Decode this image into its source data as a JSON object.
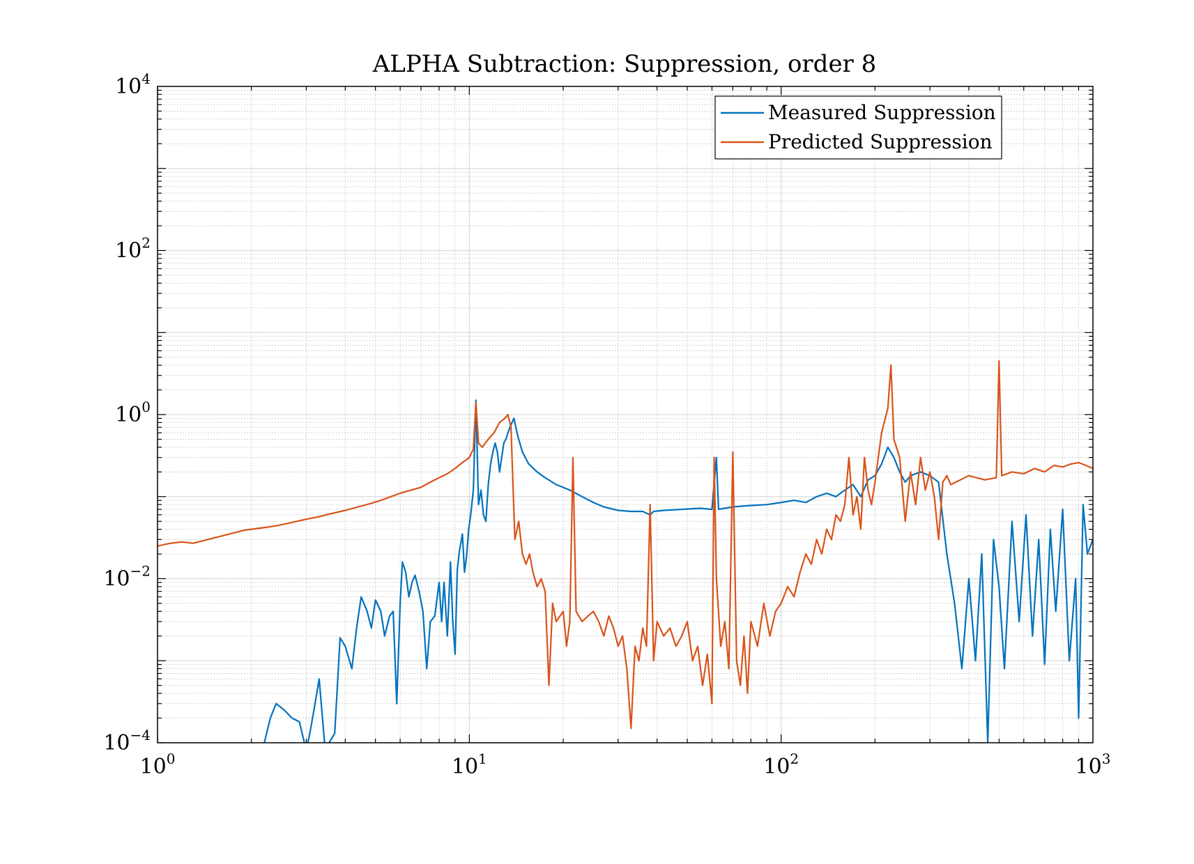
{
  "chart_data": {
    "type": "line",
    "title": "ALPHA Subtraction: Suppression, order 8",
    "xlabel": "",
    "ylabel": "",
    "xscale": "log",
    "yscale": "log",
    "xlim": [
      1,
      1000
    ],
    "ylim": [
      0.0001,
      10000
    ],
    "x_ticks": [
      {
        "value": 1,
        "base": "10",
        "exp": "0"
      },
      {
        "value": 10,
        "base": "10",
        "exp": "1"
      },
      {
        "value": 100,
        "base": "10",
        "exp": "2"
      },
      {
        "value": 1000,
        "base": "10",
        "exp": "3"
      }
    ],
    "y_ticks": [
      {
        "value": 0.0001,
        "base": "10",
        "exp": "−4"
      },
      {
        "value": 0.01,
        "base": "10",
        "exp": "−2"
      },
      {
        "value": 1,
        "base": "10",
        "exp": "0"
      },
      {
        "value": 100,
        "base": "10",
        "exp": "2"
      },
      {
        "value": 10000,
        "base": "10",
        "exp": "4"
      }
    ],
    "grid": true,
    "minor_grid": true,
    "legend_position": "top-right",
    "series": [
      {
        "name": "Measured Suppression",
        "color": "#0072BD",
        "points": [
          [
            2.2,
            0.0001
          ],
          [
            2.3,
            0.0002
          ],
          [
            2.4,
            0.0003
          ],
          [
            2.55,
            0.00025
          ],
          [
            2.7,
            0.0002
          ],
          [
            2.85,
            0.00018
          ],
          [
            3.0,
            8e-05
          ],
          [
            3.1,
            0.00015
          ],
          [
            3.2,
            0.0003
          ],
          [
            3.3,
            0.0006
          ],
          [
            3.45,
            8e-05
          ],
          [
            3.55,
            0.0001
          ],
          [
            3.7,
            0.00013
          ],
          [
            3.85,
            0.0019
          ],
          [
            4.0,
            0.0015
          ],
          [
            4.2,
            0.0008
          ],
          [
            4.35,
            0.0025
          ],
          [
            4.5,
            0.006
          ],
          [
            4.7,
            0.004
          ],
          [
            4.85,
            0.0025
          ],
          [
            5.0,
            0.0055
          ],
          [
            5.2,
            0.004
          ],
          [
            5.35,
            0.002
          ],
          [
            5.55,
            0.0035
          ],
          [
            5.7,
            0.004
          ],
          [
            5.85,
            0.0003
          ],
          [
            6.0,
            0.005
          ],
          [
            6.1,
            0.016
          ],
          [
            6.25,
            0.012
          ],
          [
            6.4,
            0.006
          ],
          [
            6.55,
            0.009
          ],
          [
            6.7,
            0.011
          ],
          [
            6.9,
            0.007
          ],
          [
            7.1,
            0.004
          ],
          [
            7.3,
            0.0008
          ],
          [
            7.5,
            0.003
          ],
          [
            7.75,
            0.0035
          ],
          [
            8.0,
            0.009
          ],
          [
            8.15,
            0.003
          ],
          [
            8.3,
            0.009
          ],
          [
            8.5,
            0.002
          ],
          [
            8.7,
            0.016
          ],
          [
            8.85,
            0.003
          ],
          [
            9.0,
            0.0012
          ],
          [
            9.15,
            0.013
          ],
          [
            9.3,
            0.022
          ],
          [
            9.5,
            0.035
          ],
          [
            9.65,
            0.012
          ],
          [
            9.8,
            0.019
          ],
          [
            9.95,
            0.04
          ],
          [
            10.1,
            0.06
          ],
          [
            10.3,
            0.12
          ],
          [
            10.5,
            1.5
          ],
          [
            10.7,
            0.08
          ],
          [
            10.9,
            0.12
          ],
          [
            11.1,
            0.06
          ],
          [
            11.3,
            0.05
          ],
          [
            11.5,
            0.14
          ],
          [
            11.7,
            0.25
          ],
          [
            11.9,
            0.35
          ],
          [
            12.1,
            0.45
          ],
          [
            12.3,
            0.35
          ],
          [
            12.5,
            0.2
          ],
          [
            12.7,
            0.3
          ],
          [
            12.9,
            0.45
          ],
          [
            13.1,
            0.5
          ],
          [
            13.3,
            0.6
          ],
          [
            13.6,
            0.75
          ],
          [
            13.9,
            0.9
          ],
          [
            14.3,
            0.55
          ],
          [
            14.8,
            0.35
          ],
          [
            15.5,
            0.25
          ],
          [
            16.5,
            0.2
          ],
          [
            17.5,
            0.17
          ],
          [
            19,
            0.14
          ],
          [
            21,
            0.12
          ],
          [
            23,
            0.1
          ],
          [
            25,
            0.085
          ],
          [
            27,
            0.075
          ],
          [
            30,
            0.068
          ],
          [
            33,
            0.066
          ],
          [
            36,
            0.066
          ],
          [
            38,
            0.06
          ],
          [
            39,
            0.066
          ],
          [
            42,
            0.068
          ],
          [
            48,
            0.07
          ],
          [
            55,
            0.072
          ],
          [
            60,
            0.07
          ],
          [
            62,
            0.3
          ],
          [
            63,
            0.07
          ],
          [
            70,
            0.075
          ],
          [
            80,
            0.078
          ],
          [
            90,
            0.08
          ],
          [
            100,
            0.085
          ],
          [
            110,
            0.09
          ],
          [
            120,
            0.085
          ],
          [
            130,
            0.1
          ],
          [
            140,
            0.11
          ],
          [
            150,
            0.1
          ],
          [
            160,
            0.12
          ],
          [
            170,
            0.14
          ],
          [
            180,
            0.1
          ],
          [
            190,
            0.16
          ],
          [
            200,
            0.18
          ],
          [
            210,
            0.25
          ],
          [
            220,
            0.4
          ],
          [
            230,
            0.3
          ],
          [
            240,
            0.2
          ],
          [
            250,
            0.15
          ],
          [
            260,
            0.18
          ],
          [
            280,
            0.2
          ],
          [
            300,
            0.18
          ],
          [
            320,
            0.15
          ],
          [
            340,
            0.02
          ],
          [
            360,
            0.005
          ],
          [
            380,
            0.0008
          ],
          [
            400,
            0.01
          ],
          [
            420,
            0.001
          ],
          [
            440,
            0.02
          ],
          [
            460,
            0.0001
          ],
          [
            480,
            0.03
          ],
          [
            500,
            0.008
          ],
          [
            520,
            0.0008
          ],
          [
            550,
            0.05
          ],
          [
            580,
            0.003
          ],
          [
            610,
            0.06
          ],
          [
            640,
            0.002
          ],
          [
            670,
            0.03
          ],
          [
            700,
            0.0009
          ],
          [
            730,
            0.04
          ],
          [
            760,
            0.004
          ],
          [
            800,
            0.07
          ],
          [
            840,
            0.001
          ],
          [
            880,
            0.01
          ],
          [
            900,
            0.0002
          ],
          [
            930,
            0.08
          ],
          [
            960,
            0.02
          ],
          [
            1000,
            0.03
          ]
        ]
      },
      {
        "name": "Predicted Suppression",
        "color": "#D95319",
        "points": [
          [
            1.0,
            0.025
          ],
          [
            1.1,
            0.027
          ],
          [
            1.2,
            0.028
          ],
          [
            1.3,
            0.027
          ],
          [
            1.4,
            0.029
          ],
          [
            1.5,
            0.031
          ],
          [
            1.6,
            0.033
          ],
          [
            1.7,
            0.035
          ],
          [
            1.8,
            0.037
          ],
          [
            1.9,
            0.039
          ],
          [
            2.0,
            0.04
          ],
          [
            2.2,
            0.042
          ],
          [
            2.4,
            0.044
          ],
          [
            2.6,
            0.047
          ],
          [
            2.8,
            0.05
          ],
          [
            3.0,
            0.053
          ],
          [
            3.3,
            0.057
          ],
          [
            3.6,
            0.062
          ],
          [
            4.0,
            0.068
          ],
          [
            4.4,
            0.075
          ],
          [
            4.8,
            0.082
          ],
          [
            5.2,
            0.09
          ],
          [
            5.6,
            0.1
          ],
          [
            6.0,
            0.11
          ],
          [
            6.5,
            0.12
          ],
          [
            7.0,
            0.13
          ],
          [
            7.5,
            0.15
          ],
          [
            8.0,
            0.17
          ],
          [
            8.5,
            0.19
          ],
          [
            9.0,
            0.22
          ],
          [
            9.5,
            0.26
          ],
          [
            10.0,
            0.3
          ],
          [
            10.3,
            0.38
          ],
          [
            10.5,
            1.4
          ],
          [
            10.7,
            0.45
          ],
          [
            11.0,
            0.4
          ],
          [
            11.5,
            0.5
          ],
          [
            12.0,
            0.6
          ],
          [
            12.5,
            0.8
          ],
          [
            13.0,
            0.9
          ],
          [
            13.3,
            1.0
          ],
          [
            13.6,
            0.7
          ],
          [
            14.0,
            0.03
          ],
          [
            14.4,
            0.05
          ],
          [
            14.8,
            0.02
          ],
          [
            15.2,
            0.015
          ],
          [
            15.6,
            0.02
          ],
          [
            16.0,
            0.012
          ],
          [
            16.5,
            0.008
          ],
          [
            17.0,
            0.01
          ],
          [
            17.5,
            0.007
          ],
          [
            18.0,
            0.0005
          ],
          [
            18.5,
            0.005
          ],
          [
            19,
            0.003
          ],
          [
            20,
            0.004
          ],
          [
            20.5,
            0.0015
          ],
          [
            21,
            0.003
          ],
          [
            21.5,
            0.3
          ],
          [
            22,
            0.004
          ],
          [
            23,
            0.003
          ],
          [
            24,
            0.0035
          ],
          [
            25,
            0.004
          ],
          [
            26,
            0.003
          ],
          [
            27,
            0.002
          ],
          [
            28,
            0.0035
          ],
          [
            29,
            0.0025
          ],
          [
            30,
            0.0015
          ],
          [
            31,
            0.002
          ],
          [
            32,
            0.0008
          ],
          [
            33,
            0.00015
          ],
          [
            34,
            0.0015
          ],
          [
            35,
            0.001
          ],
          [
            36,
            0.0025
          ],
          [
            37,
            0.0015
          ],
          [
            38,
            0.08
          ],
          [
            39,
            0.001
          ],
          [
            40,
            0.003
          ],
          [
            42,
            0.002
          ],
          [
            44,
            0.0025
          ],
          [
            46,
            0.0015
          ],
          [
            48,
            0.002
          ],
          [
            50,
            0.003
          ],
          [
            52,
            0.001
          ],
          [
            54,
            0.0015
          ],
          [
            56,
            0.0005
          ],
          [
            58,
            0.0012
          ],
          [
            60,
            0.0003
          ],
          [
            61,
            0.3
          ],
          [
            62,
            0.01
          ],
          [
            64,
            0.0015
          ],
          [
            66,
            0.003
          ],
          [
            68,
            0.0008
          ],
          [
            70,
            0.35
          ],
          [
            72,
            0.001
          ],
          [
            74,
            0.0005
          ],
          [
            76,
            0.002
          ],
          [
            78,
            0.0004
          ],
          [
            80,
            0.003
          ],
          [
            84,
            0.0015
          ],
          [
            88,
            0.005
          ],
          [
            92,
            0.002
          ],
          [
            96,
            0.004
          ],
          [
            100,
            0.005
          ],
          [
            105,
            0.008
          ],
          [
            110,
            0.006
          ],
          [
            115,
            0.012
          ],
          [
            120,
            0.02
          ],
          [
            125,
            0.015
          ],
          [
            130,
            0.03
          ],
          [
            135,
            0.02
          ],
          [
            140,
            0.04
          ],
          [
            145,
            0.03
          ],
          [
            150,
            0.06
          ],
          [
            155,
            0.05
          ],
          [
            160,
            0.08
          ],
          [
            165,
            0.3
          ],
          [
            170,
            0.06
          ],
          [
            175,
            0.1
          ],
          [
            180,
            0.04
          ],
          [
            185,
            0.3
          ],
          [
            190,
            0.12
          ],
          [
            195,
            0.08
          ],
          [
            200,
            0.15
          ],
          [
            210,
            0.6
          ],
          [
            220,
            1.2
          ],
          [
            225,
            4.0
          ],
          [
            230,
            0.5
          ],
          [
            240,
            0.3
          ],
          [
            250,
            0.05
          ],
          [
            260,
            0.2
          ],
          [
            270,
            0.08
          ],
          [
            280,
            0.3
          ],
          [
            290,
            0.12
          ],
          [
            300,
            0.2
          ],
          [
            310,
            0.1
          ],
          [
            320,
            0.03
          ],
          [
            330,
            0.15
          ],
          [
            340,
            0.18
          ],
          [
            350,
            0.14
          ],
          [
            400,
            0.18
          ],
          [
            450,
            0.16
          ],
          [
            490,
            0.17
          ],
          [
            500,
            4.5
          ],
          [
            510,
            0.18
          ],
          [
            550,
            0.2
          ],
          [
            600,
            0.19
          ],
          [
            650,
            0.22
          ],
          [
            700,
            0.2
          ],
          [
            750,
            0.24
          ],
          [
            800,
            0.23
          ],
          [
            850,
            0.25
          ],
          [
            900,
            0.26
          ],
          [
            950,
            0.24
          ],
          [
            1000,
            0.22
          ]
        ]
      }
    ]
  }
}
